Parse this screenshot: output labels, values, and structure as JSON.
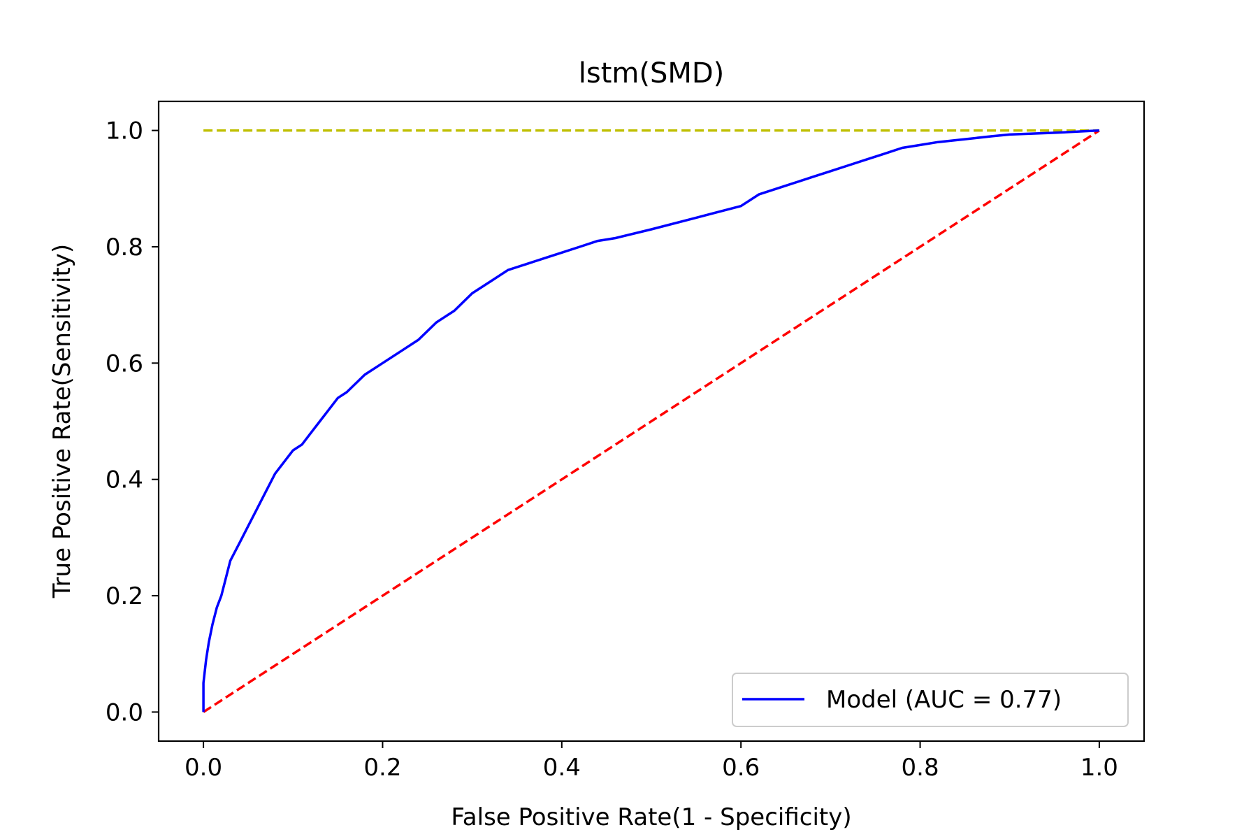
{
  "chart_data": {
    "type": "line",
    "title": "lstm(SMD)",
    "xlabel": "False Positive Rate(1 - Specificity)",
    "ylabel": "True Positive Rate(Sensitivity)",
    "xlim": [
      -0.05,
      1.05
    ],
    "ylim": [
      -0.05,
      1.05
    ],
    "xticks": [
      "0.0",
      "0.2",
      "0.4",
      "0.6",
      "0.8",
      "1.0"
    ],
    "yticks": [
      "0.0",
      "0.2",
      "0.4",
      "0.6",
      "0.8",
      "1.0"
    ],
    "grid": false,
    "legend_position": "lower-right",
    "legend_entries": [
      "Model (AUC = 0.77)"
    ],
    "series": [
      {
        "name": "Model (AUC = 0.77)",
        "color": "#0000ff",
        "style": "solid",
        "x": [
          0.0,
          0.0,
          0.003,
          0.006,
          0.01,
          0.015,
          0.02,
          0.025,
          0.03,
          0.04,
          0.05,
          0.06,
          0.07,
          0.08,
          0.09,
          0.1,
          0.11,
          0.12,
          0.13,
          0.14,
          0.15,
          0.16,
          0.18,
          0.2,
          0.22,
          0.24,
          0.26,
          0.28,
          0.3,
          0.32,
          0.34,
          0.36,
          0.38,
          0.4,
          0.42,
          0.44,
          0.46,
          0.5,
          0.55,
          0.6,
          0.62,
          0.65,
          0.68,
          0.7,
          0.72,
          0.74,
          0.76,
          0.78,
          0.8,
          0.82,
          0.85,
          0.88,
          0.9,
          0.95,
          1.0
        ],
        "y": [
          0.0,
          0.05,
          0.09,
          0.12,
          0.15,
          0.18,
          0.2,
          0.23,
          0.26,
          0.29,
          0.32,
          0.35,
          0.38,
          0.41,
          0.43,
          0.45,
          0.46,
          0.48,
          0.5,
          0.52,
          0.54,
          0.55,
          0.58,
          0.6,
          0.62,
          0.64,
          0.67,
          0.69,
          0.72,
          0.74,
          0.76,
          0.77,
          0.78,
          0.79,
          0.8,
          0.81,
          0.815,
          0.83,
          0.85,
          0.87,
          0.89,
          0.905,
          0.92,
          0.93,
          0.94,
          0.95,
          0.96,
          0.97,
          0.975,
          0.98,
          0.985,
          0.99,
          0.993,
          0.996,
          1.0
        ]
      },
      {
        "name": "",
        "color": "#ff0000",
        "style": "dashed",
        "x": [
          0.0,
          1.0
        ],
        "y": [
          0.0,
          1.0
        ]
      },
      {
        "name": "",
        "color": "#bfbf00",
        "style": "dashed",
        "x": [
          0.0,
          1.0
        ],
        "y": [
          1.0,
          1.0
        ]
      }
    ]
  }
}
